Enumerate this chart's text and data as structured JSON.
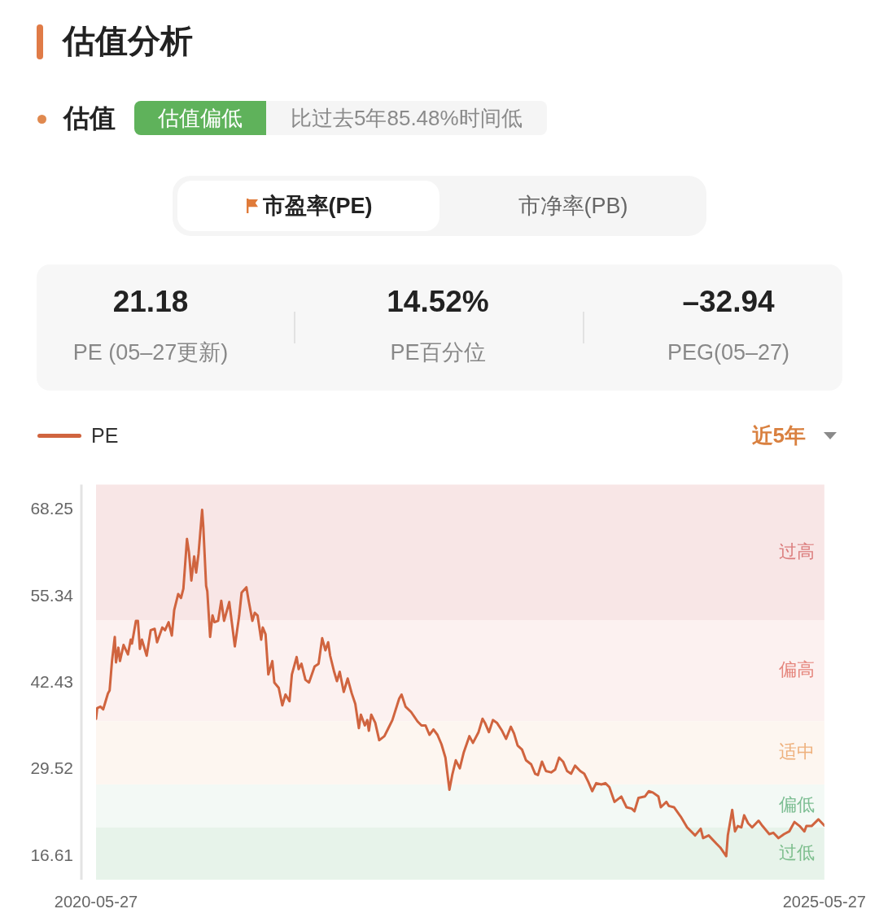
{
  "chart_data": [
    {
      "type": "other",
      "title": "估值分析",
      "annotations": [
        "估值",
        "估值偏低",
        "比过去5年85.48%时间低",
        "市盈率(PE)",
        "市净率(PB)",
        "21.18",
        "PE (05–27更新)",
        "14.52%",
        "PE百分位",
        "–32.94",
        "PEG(05–27)"
      ]
    },
    {
      "type": "line",
      "legend": "top left",
      "marker": "none",
      "line_style": "solid",
      "annotations": [
        "近5年"
      ],
      "xlim": [
        "2020-05-27",
        "2025-05-27"
      ],
      "xticks": [
        "2020-05-27",
        "2025-05-27"
      ],
      "ylim": [
        13.1,
        72.0
      ],
      "yticks": [
        16.61,
        29.52,
        42.43,
        55.34,
        68.25
      ],
      "bands": [
        {
          "axis": "y",
          "from": 51.8,
          "to": 72.0,
          "label": "过高",
          "color": "#f8e6e6"
        },
        {
          "axis": "y",
          "from": 36.7,
          "to": 51.8,
          "label": "偏高",
          "color": "#fcf1f0"
        },
        {
          "axis": "y",
          "from": 27.3,
          "to": 36.7,
          "label": "适中",
          "color": "#fdf6f0"
        },
        {
          "axis": "y",
          "from": 20.9,
          "to": 27.3,
          "label": "偏低",
          "color": "#f3f9f5"
        },
        {
          "axis": "y",
          "from": 13.1,
          "to": 20.9,
          "label": "过低",
          "color": "#e7f3ea"
        }
      ],
      "x": [
        "2020-05-27",
        "2020-05-30",
        "2020-06-07",
        "2020-06-14",
        "2020-06-20",
        "2020-06-26",
        "2020-06-30",
        "2020-07-06",
        "2020-07-13",
        "2020-07-16",
        "2020-07-22",
        "2020-07-26",
        "2020-08-04",
        "2020-08-15",
        "2020-08-22",
        "2020-08-25",
        "2020-09-04",
        "2020-09-09",
        "2020-09-14",
        "2020-09-19",
        "2020-10-01",
        "2020-10-11",
        "2020-10-21",
        "2020-10-27",
        "2020-11-09",
        "2020-11-16",
        "2020-11-25",
        "2020-12-03",
        "2020-12-09",
        "2020-12-19",
        "2020-12-26",
        "2021-01-01",
        "2021-01-10",
        "2021-01-15",
        "2021-01-21",
        "2021-01-28",
        "2021-02-02",
        "2021-02-08",
        "2021-02-17",
        "2021-02-20",
        "2021-02-27",
        "2021-03-02",
        "2021-03-09",
        "2021-03-15",
        "2021-03-20",
        "2021-03-29",
        "2021-04-06",
        "2021-04-13",
        "2021-04-26",
        "2021-05-10",
        "2021-05-21",
        "2021-05-27",
        "2021-06-08",
        "2021-06-13",
        "2021-06-23",
        "2021-06-29",
        "2021-07-06",
        "2021-07-15",
        "2021-07-19",
        "2021-07-26",
        "2021-08-02",
        "2021-08-12",
        "2021-08-17",
        "2021-08-28",
        "2021-09-06",
        "2021-09-14",
        "2021-09-24",
        "2021-09-30",
        "2021-10-12",
        "2021-10-17",
        "2021-10-24",
        "2021-11-03",
        "2021-11-12",
        "2021-11-26",
        "2021-12-06",
        "2021-12-15",
        "2021-12-23",
        "2021-12-30",
        "2022-01-04",
        "2022-01-14",
        "2022-01-21",
        "2022-01-28",
        "2022-02-07",
        "2022-02-17",
        "2022-02-27",
        "2022-03-08",
        "2022-03-17",
        "2022-03-22",
        "2022-04-01",
        "2022-04-07",
        "2022-04-11",
        "2022-04-17",
        "2022-04-27",
        "2022-05-07",
        "2022-05-20",
        "2022-05-30",
        "2022-06-09",
        "2022-06-26",
        "2022-07-02",
        "2022-07-12",
        "2022-07-26",
        "2022-08-11",
        "2022-08-21",
        "2022-08-31",
        "2022-09-10",
        "2022-09-20",
        "2022-09-30",
        "2022-10-10",
        "2022-10-20",
        "2022-10-30",
        "2022-11-06",
        "2022-11-15",
        "2022-11-25",
        "2022-12-05",
        "2022-12-19",
        "2022-12-28",
        "2023-01-11",
        "2023-01-21",
        "2023-01-27",
        "2023-02-06",
        "2023-02-16",
        "2023-02-26",
        "2023-03-11",
        "2023-03-21",
        "2023-04-02",
        "2023-04-10",
        "2023-04-19",
        "2023-04-30",
        "2023-05-10",
        "2023-05-23",
        "2023-06-02",
        "2023-06-09",
        "2023-06-19",
        "2023-06-29",
        "2023-07-12",
        "2023-07-22",
        "2023-08-01",
        "2023-08-11",
        "2023-08-21",
        "2023-08-31",
        "2023-09-10",
        "2023-09-23",
        "2023-10-03",
        "2023-10-13",
        "2023-10-23",
        "2023-11-02",
        "2023-11-15",
        "2023-11-25",
        "2023-12-05",
        "2023-12-18",
        "2024-01-04",
        "2024-01-17",
        "2024-01-30",
        "2024-02-06",
        "2024-02-16",
        "2024-03-03",
        "2024-03-13",
        "2024-03-23",
        "2024-04-06",
        "2024-04-12",
        "2024-04-26",
        "2024-05-02",
        "2024-05-15",
        "2024-06-01",
        "2024-06-17",
        "2024-07-07",
        "2024-07-21",
        "2024-07-27",
        "2024-08-10",
        "2024-08-29",
        "2024-09-08",
        "2024-09-23",
        "2024-09-27",
        "2024-10-08",
        "2024-10-15",
        "2024-10-22",
        "2024-10-31",
        "2024-11-07",
        "2024-11-17",
        "2024-11-27",
        "2024-12-13",
        "2024-12-23",
        "2025-01-09",
        "2025-01-19",
        "2025-02-01",
        "2025-02-15",
        "2025-02-28",
        "2025-03-13",
        "2025-03-26",
        "2025-04-07",
        "2025-04-12",
        "2025-04-25",
        "2025-05-12",
        "2025-05-27"
      ],
      "series": [
        {
          "name": "PE",
          "color": "#d0643f",
          "values": [
            37.1,
            38.7,
            38.9,
            38.5,
            39.7,
            40.9,
            41.3,
            45.7,
            49.3,
            45.5,
            47.7,
            45.7,
            48.1,
            46.7,
            48.9,
            48.3,
            51.7,
            51.7,
            47.5,
            48.9,
            46.5,
            50.3,
            50.5,
            48.5,
            50.7,
            50.3,
            51.5,
            49.5,
            53.3,
            55.7,
            55.1,
            56.5,
            63.9,
            61.9,
            57.7,
            61.3,
            58.9,
            61.7,
            68.25,
            65.7,
            56.9,
            56.1,
            49.3,
            52.5,
            51.5,
            51.7,
            54.7,
            51.7,
            54.5,
            47.9,
            52.5,
            55.9,
            56.7,
            54.9,
            51.7,
            52.9,
            52.5,
            48.9,
            50.7,
            49.7,
            43.7,
            45.7,
            42.5,
            41.7,
            39.1,
            40.7,
            39.7,
            43.7,
            46.3,
            44.5,
            45.3,
            42.9,
            42.5,
            44.9,
            45.3,
            49.1,
            47.3,
            48.5,
            46.5,
            44.1,
            42.7,
            44.1,
            41.1,
            43.1,
            40.9,
            39.3,
            35.7,
            37.7,
            36.1,
            36.9,
            35.3,
            37.7,
            36.5,
            33.9,
            34.5,
            35.7,
            36.9,
            40.1,
            40.7,
            38.9,
            38.1,
            36.7,
            36.1,
            36.1,
            34.7,
            35.5,
            34.7,
            33.3,
            31.3,
            26.5,
            28.7,
            30.9,
            29.7,
            32.1,
            34.5,
            33.5,
            35.1,
            37.1,
            36.5,
            35.1,
            36.9,
            36.5,
            35.3,
            34.1,
            35.9,
            34.9,
            33.1,
            32.5,
            30.9,
            30.3,
            28.9,
            28.7,
            30.7,
            29.3,
            29.1,
            29.5,
            31.3,
            30.7,
            29.3,
            28.9,
            30.1,
            29.3,
            28.9,
            27.7,
            26.3,
            27.5,
            27.3,
            27.5,
            26.9,
            24.7,
            25.5,
            23.9,
            23.7,
            23.3,
            25.3,
            25.5,
            26.3,
            26.1,
            25.5,
            23.9,
            24.7,
            24.1,
            23.9,
            22.5,
            20.9,
            19.7,
            20.7,
            19.3,
            19.7,
            18.5,
            17.9,
            16.61,
            19.7,
            23.5,
            20.3,
            21.1,
            20.9,
            22.7,
            21.5,
            20.9,
            21.9,
            21.1,
            19.9,
            20.1,
            19.3,
            19.9,
            20.3,
            21.7,
            21.1,
            20.3,
            21.1,
            21.1,
            22.1,
            21.18
          ]
        }
      ]
    }
  ]
}
